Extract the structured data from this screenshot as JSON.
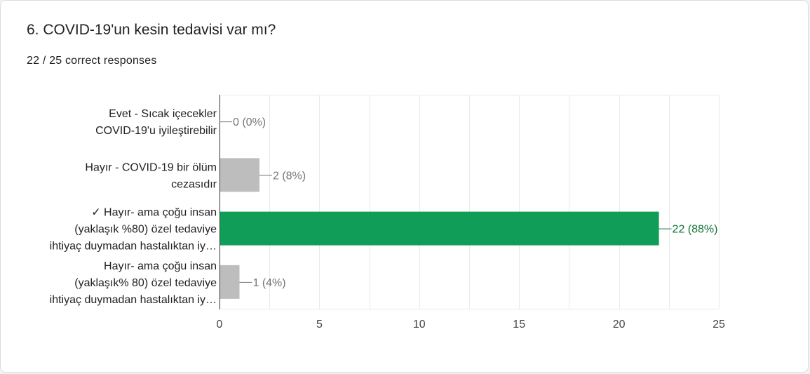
{
  "question": {
    "title": "6. COVID-19'un kesin tedavisi var mı?",
    "summary": "22 / 25 correct responses"
  },
  "colors": {
    "correct_bar": "#0f9d58",
    "other_bar": "#bdbdbd",
    "correct_label": "#137333",
    "other_label": "#757575",
    "axis_text": "#444444",
    "category_text": "#202124",
    "gridline": "#e8eaed",
    "axis_line": "#333333"
  },
  "chart_data": {
    "type": "bar",
    "orientation": "horizontal",
    "categories": [
      [
        "Evet - Sıcak içecekler",
        "COVID-19'u iyileştirebilir"
      ],
      [
        "Hayır - COVID-19 bir ölüm",
        "cezasıdır"
      ],
      [
        "✓ Hayır- ama çoğu insan",
        "(yaklaşık %80) özel tedaviye",
        "ihtiyaç duymadan hastalıktan iy…"
      ],
      [
        "Hayır- ama çoğu insan",
        "(yaklaşık% 80) özel tedaviye",
        "ihtiyaç duymadan hastalıktan iy…"
      ]
    ],
    "values": [
      0,
      2,
      22,
      1
    ],
    "value_labels": [
      "0 (0%)",
      "2 (8%)",
      "22 (88%)",
      "1 (4%)"
    ],
    "correct": [
      false,
      false,
      true,
      false
    ],
    "xlim": [
      0,
      25
    ],
    "xticks": [
      0,
      5,
      10,
      15,
      20,
      25
    ],
    "grid": true
  }
}
